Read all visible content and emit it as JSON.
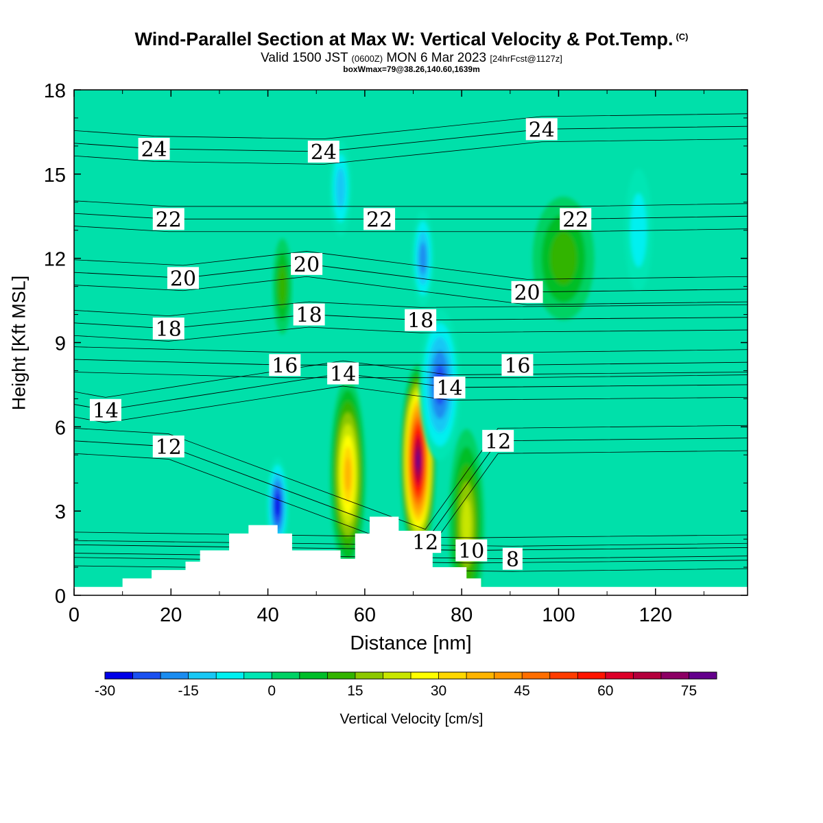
{
  "header": {
    "title": "Wind-Parallel Section at Max W: Vertical Velocity & Pot.Temp.",
    "title_tag": "(C)",
    "valid_prefix": "Valid 1500 JST",
    "valid_zulu": "(0600Z)",
    "valid_date": "MON 6 Mar 2023",
    "forecast_info": "[24hrFcst@1127z]",
    "box_info": "boxWmax=79@38.26,140.60,1639m"
  },
  "chart_data": {
    "type": "heatmap",
    "title": "Wind-Parallel Section at Max W: Vertical Velocity & Pot.Temp.",
    "xlabel": "Distance [nm]",
    "ylabel": "Height [Kft MSL]",
    "xlim": [
      0,
      139
    ],
    "ylim": [
      0,
      18
    ],
    "x_ticks": [
      0,
      20,
      40,
      60,
      80,
      100,
      120
    ],
    "y_ticks": [
      0,
      3,
      6,
      9,
      12,
      15,
      18
    ],
    "grid": false,
    "colorbar": {
      "label": "Vertical Velocity [cm/s]",
      "placement": "bottom",
      "min": -30,
      "max": 85,
      "step": 5,
      "tick_values": [
        -30,
        -15,
        0,
        15,
        30,
        45,
        60,
        75
      ],
      "colors": [
        "#0000e8",
        "#1a50f0",
        "#1a8cf0",
        "#19c8f5",
        "#00f0f0",
        "#00e6b4",
        "#00d264",
        "#00be28",
        "#32b400",
        "#8cc800",
        "#c8e600",
        "#ffff00",
        "#ffd700",
        "#ffb400",
        "#ff9600",
        "#ff6e00",
        "#ff3c00",
        "#ff1400",
        "#dc0028",
        "#b4003c",
        "#8c0064",
        "#64008c"
      ]
    },
    "terrain_kft": [
      [
        0,
        0.3
      ],
      [
        10,
        0.3
      ],
      [
        10,
        0.6
      ],
      [
        16,
        0.6
      ],
      [
        16,
        0.9
      ],
      [
        23,
        0.9
      ],
      [
        23,
        1.2
      ],
      [
        26,
        1.2
      ],
      [
        26,
        1.6
      ],
      [
        32,
        1.6
      ],
      [
        32,
        2.2
      ],
      [
        36,
        2.2
      ],
      [
        36,
        2.5
      ],
      [
        42,
        2.5
      ],
      [
        42,
        2.2
      ],
      [
        45,
        2.2
      ],
      [
        45,
        1.6
      ],
      [
        55,
        1.6
      ],
      [
        55,
        1.3
      ],
      [
        58,
        1.3
      ],
      [
        58,
        2.2
      ],
      [
        61,
        2.2
      ],
      [
        61,
        2.8
      ],
      [
        67,
        2.8
      ],
      [
        67,
        2.3
      ],
      [
        74,
        2.3
      ],
      [
        74,
        1.0
      ],
      [
        81,
        1.0
      ],
      [
        81,
        0.6
      ],
      [
        84,
        0.6
      ],
      [
        84,
        0.3
      ],
      [
        139,
        0.3
      ]
    ],
    "vertical_velocity_features": [
      {
        "x": 56.5,
        "y": 4.3,
        "value": 40,
        "type": "updraft"
      },
      {
        "x": 71.0,
        "y": 4.8,
        "value": 79,
        "type": "updraft"
      },
      {
        "x": 81.0,
        "y": 2.5,
        "value": 25,
        "type": "updraft"
      },
      {
        "x": 42.0,
        "y": 3.2,
        "value": -30,
        "type": "downdraft"
      },
      {
        "x": 75.5,
        "y": 7.5,
        "value": -25,
        "type": "downdraft"
      },
      {
        "x": 72.0,
        "y": 12.0,
        "value": -20,
        "type": "downdraft"
      },
      {
        "x": 55.0,
        "y": 14.5,
        "value": -15,
        "type": "downdraft"
      },
      {
        "x": 101.0,
        "y": 12.0,
        "value": 15,
        "type": "updraft"
      },
      {
        "x": 43.0,
        "y": 11.0,
        "value": 15,
        "type": "updraft"
      },
      {
        "x": 116.5,
        "y": 13.0,
        "value": -8,
        "type": "downdraft"
      }
    ],
    "pot_temp_contour_labels": [
      {
        "text": "24",
        "x": 16.5,
        "y": 15.9
      },
      {
        "text": "24",
        "x": 51.5,
        "y": 15.8
      },
      {
        "text": "24",
        "x": 96.5,
        "y": 16.6
      },
      {
        "text": "22",
        "x": 19.5,
        "y": 13.4
      },
      {
        "text": "22",
        "x": 63.0,
        "y": 13.4
      },
      {
        "text": "22",
        "x": 103.5,
        "y": 13.4
      },
      {
        "text": "20",
        "x": 22.5,
        "y": 11.3
      },
      {
        "text": "20",
        "x": 48.0,
        "y": 11.8
      },
      {
        "text": "20",
        "x": 93.5,
        "y": 10.8
      },
      {
        "text": "18",
        "x": 19.5,
        "y": 9.5
      },
      {
        "text": "18",
        "x": 48.5,
        "y": 10.0
      },
      {
        "text": "18",
        "x": 71.5,
        "y": 9.8
      },
      {
        "text": "16",
        "x": 43.5,
        "y": 8.2
      },
      {
        "text": "16",
        "x": 91.5,
        "y": 8.2
      },
      {
        "text": "14",
        "x": 6.5,
        "y": 6.6
      },
      {
        "text": "14",
        "x": 55.5,
        "y": 7.9
      },
      {
        "text": "14",
        "x": 77.5,
        "y": 7.4
      },
      {
        "text": "12",
        "x": 19.5,
        "y": 5.3
      },
      {
        "text": "12",
        "x": 87.5,
        "y": 5.5
      },
      {
        "text": "12",
        "x": 72.5,
        "y": 1.9
      },
      {
        "text": "10",
        "x": 82.0,
        "y": 1.6
      },
      {
        "text": "8",
        "x": 90.5,
        "y": 1.3
      }
    ]
  }
}
